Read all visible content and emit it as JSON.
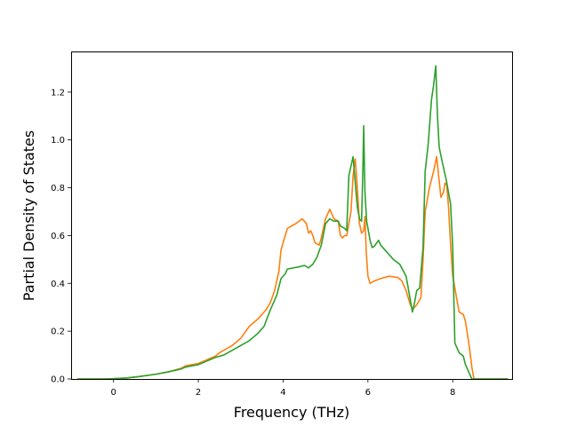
{
  "chart_data": {
    "type": "line",
    "title": "",
    "xlabel": "Frequency (THz)",
    "ylabel": "Partial Density of States",
    "xlim": [
      -1.0,
      9.4
    ],
    "ylim": [
      0.0,
      1.37
    ],
    "x_ticks": [
      0,
      2,
      4,
      6,
      8
    ],
    "y_ticks": [
      0.0,
      0.2,
      0.4,
      0.6,
      0.8,
      1.0,
      1.2
    ],
    "x_tick_labels": [
      "0",
      "2",
      "4",
      "6",
      "8"
    ],
    "y_tick_labels": [
      "0.0",
      "0.2",
      "0.4",
      "0.6",
      "0.8",
      "1.0",
      "1.2"
    ],
    "grid": false,
    "legend": false,
    "series": [
      {
        "color": "#ff7f0e",
        "points": [
          [
            -0.85,
            0.0
          ],
          [
            -0.2,
            0.0
          ],
          [
            0.0,
            0.001
          ],
          [
            0.3,
            0.004
          ],
          [
            0.6,
            0.01
          ],
          [
            1.0,
            0.02
          ],
          [
            1.3,
            0.03
          ],
          [
            1.6,
            0.045
          ],
          [
            1.7,
            0.055
          ],
          [
            2.0,
            0.065
          ],
          [
            2.2,
            0.08
          ],
          [
            2.4,
            0.095
          ],
          [
            2.5,
            0.11
          ],
          [
            2.6,
            0.12
          ],
          [
            2.8,
            0.14
          ],
          [
            3.0,
            0.17
          ],
          [
            3.2,
            0.22
          ],
          [
            3.4,
            0.25
          ],
          [
            3.6,
            0.29
          ],
          [
            3.7,
            0.32
          ],
          [
            3.8,
            0.37
          ],
          [
            3.9,
            0.45
          ],
          [
            3.95,
            0.54
          ],
          [
            4.05,
            0.6
          ],
          [
            4.1,
            0.63
          ],
          [
            4.2,
            0.64
          ],
          [
            4.3,
            0.65
          ],
          [
            4.45,
            0.67
          ],
          [
            4.55,
            0.65
          ],
          [
            4.6,
            0.61
          ],
          [
            4.65,
            0.62
          ],
          [
            4.7,
            0.6
          ],
          [
            4.75,
            0.57
          ],
          [
            4.85,
            0.56
          ],
          [
            4.9,
            0.59
          ],
          [
            4.95,
            0.63
          ],
          [
            5.0,
            0.67
          ],
          [
            5.1,
            0.71
          ],
          [
            5.2,
            0.67
          ],
          [
            5.3,
            0.66
          ],
          [
            5.35,
            0.6
          ],
          [
            5.4,
            0.59
          ],
          [
            5.45,
            0.6
          ],
          [
            5.5,
            0.6
          ],
          [
            5.6,
            0.7
          ],
          [
            5.65,
            0.85
          ],
          [
            5.7,
            0.92
          ],
          [
            5.75,
            0.8
          ],
          [
            5.8,
            0.65
          ],
          [
            5.85,
            0.61
          ],
          [
            5.9,
            0.62
          ],
          [
            5.93,
            0.68
          ],
          [
            5.96,
            0.53
          ],
          [
            6.0,
            0.43
          ],
          [
            6.05,
            0.4
          ],
          [
            6.15,
            0.41
          ],
          [
            6.3,
            0.42
          ],
          [
            6.5,
            0.43
          ],
          [
            6.7,
            0.425
          ],
          [
            6.8,
            0.41
          ],
          [
            6.9,
            0.37
          ],
          [
            7.0,
            0.31
          ],
          [
            7.05,
            0.29
          ],
          [
            7.15,
            0.31
          ],
          [
            7.25,
            0.34
          ],
          [
            7.3,
            0.5
          ],
          [
            7.35,
            0.7
          ],
          [
            7.45,
            0.8
          ],
          [
            7.55,
            0.87
          ],
          [
            7.62,
            0.93
          ],
          [
            7.68,
            0.83
          ],
          [
            7.72,
            0.76
          ],
          [
            7.78,
            0.78
          ],
          [
            7.82,
            0.82
          ],
          [
            7.86,
            0.81
          ],
          [
            7.9,
            0.72
          ],
          [
            7.95,
            0.56
          ],
          [
            8.0,
            0.43
          ],
          [
            8.08,
            0.35
          ],
          [
            8.15,
            0.28
          ],
          [
            8.25,
            0.27
          ],
          [
            8.3,
            0.24
          ],
          [
            8.38,
            0.15
          ],
          [
            8.45,
            0.05
          ],
          [
            8.5,
            0.0
          ],
          [
            9.3,
            0.0
          ]
        ]
      },
      {
        "color": "#2ca02c",
        "points": [
          [
            -0.85,
            0.0
          ],
          [
            -0.2,
            0.0
          ],
          [
            0.0,
            0.001
          ],
          [
            0.3,
            0.004
          ],
          [
            0.6,
            0.01
          ],
          [
            1.0,
            0.02
          ],
          [
            1.3,
            0.03
          ],
          [
            1.6,
            0.042
          ],
          [
            1.7,
            0.05
          ],
          [
            2.0,
            0.06
          ],
          [
            2.2,
            0.075
          ],
          [
            2.4,
            0.09
          ],
          [
            2.6,
            0.1
          ],
          [
            2.8,
            0.12
          ],
          [
            3.0,
            0.14
          ],
          [
            3.2,
            0.16
          ],
          [
            3.4,
            0.19
          ],
          [
            3.55,
            0.22
          ],
          [
            3.7,
            0.29
          ],
          [
            3.85,
            0.35
          ],
          [
            3.95,
            0.42
          ],
          [
            4.05,
            0.44
          ],
          [
            4.1,
            0.46
          ],
          [
            4.25,
            0.465
          ],
          [
            4.4,
            0.47
          ],
          [
            4.5,
            0.475
          ],
          [
            4.6,
            0.465
          ],
          [
            4.7,
            0.48
          ],
          [
            4.8,
            0.51
          ],
          [
            4.9,
            0.56
          ],
          [
            5.0,
            0.65
          ],
          [
            5.1,
            0.67
          ],
          [
            5.2,
            0.66
          ],
          [
            5.3,
            0.66
          ],
          [
            5.35,
            0.64
          ],
          [
            5.45,
            0.63
          ],
          [
            5.5,
            0.62
          ],
          [
            5.55,
            0.85
          ],
          [
            5.65,
            0.93
          ],
          [
            5.75,
            0.72
          ],
          [
            5.8,
            0.67
          ],
          [
            5.85,
            0.66
          ],
          [
            5.88,
            0.87
          ],
          [
            5.9,
            1.06
          ],
          [
            5.93,
            0.78
          ],
          [
            5.97,
            0.66
          ],
          [
            6.05,
            0.58
          ],
          [
            6.1,
            0.55
          ],
          [
            6.15,
            0.555
          ],
          [
            6.25,
            0.58
          ],
          [
            6.3,
            0.56
          ],
          [
            6.4,
            0.54
          ],
          [
            6.6,
            0.5
          ],
          [
            6.75,
            0.48
          ],
          [
            6.9,
            0.43
          ],
          [
            7.0,
            0.33
          ],
          [
            7.05,
            0.28
          ],
          [
            7.1,
            0.32
          ],
          [
            7.15,
            0.37
          ],
          [
            7.22,
            0.38
          ],
          [
            7.3,
            0.55
          ],
          [
            7.35,
            0.87
          ],
          [
            7.42,
            0.98
          ],
          [
            7.5,
            1.17
          ],
          [
            7.55,
            1.23
          ],
          [
            7.6,
            1.31
          ],
          [
            7.64,
            1.1
          ],
          [
            7.68,
            0.97
          ],
          [
            7.75,
            0.91
          ],
          [
            7.85,
            0.83
          ],
          [
            7.9,
            0.78
          ],
          [
            7.95,
            0.73
          ],
          [
            8.0,
            0.55
          ],
          [
            8.05,
            0.15
          ],
          [
            8.15,
            0.11
          ],
          [
            8.25,
            0.095
          ],
          [
            8.3,
            0.06
          ],
          [
            8.45,
            0.0
          ],
          [
            9.3,
            0.0
          ]
        ]
      }
    ]
  }
}
